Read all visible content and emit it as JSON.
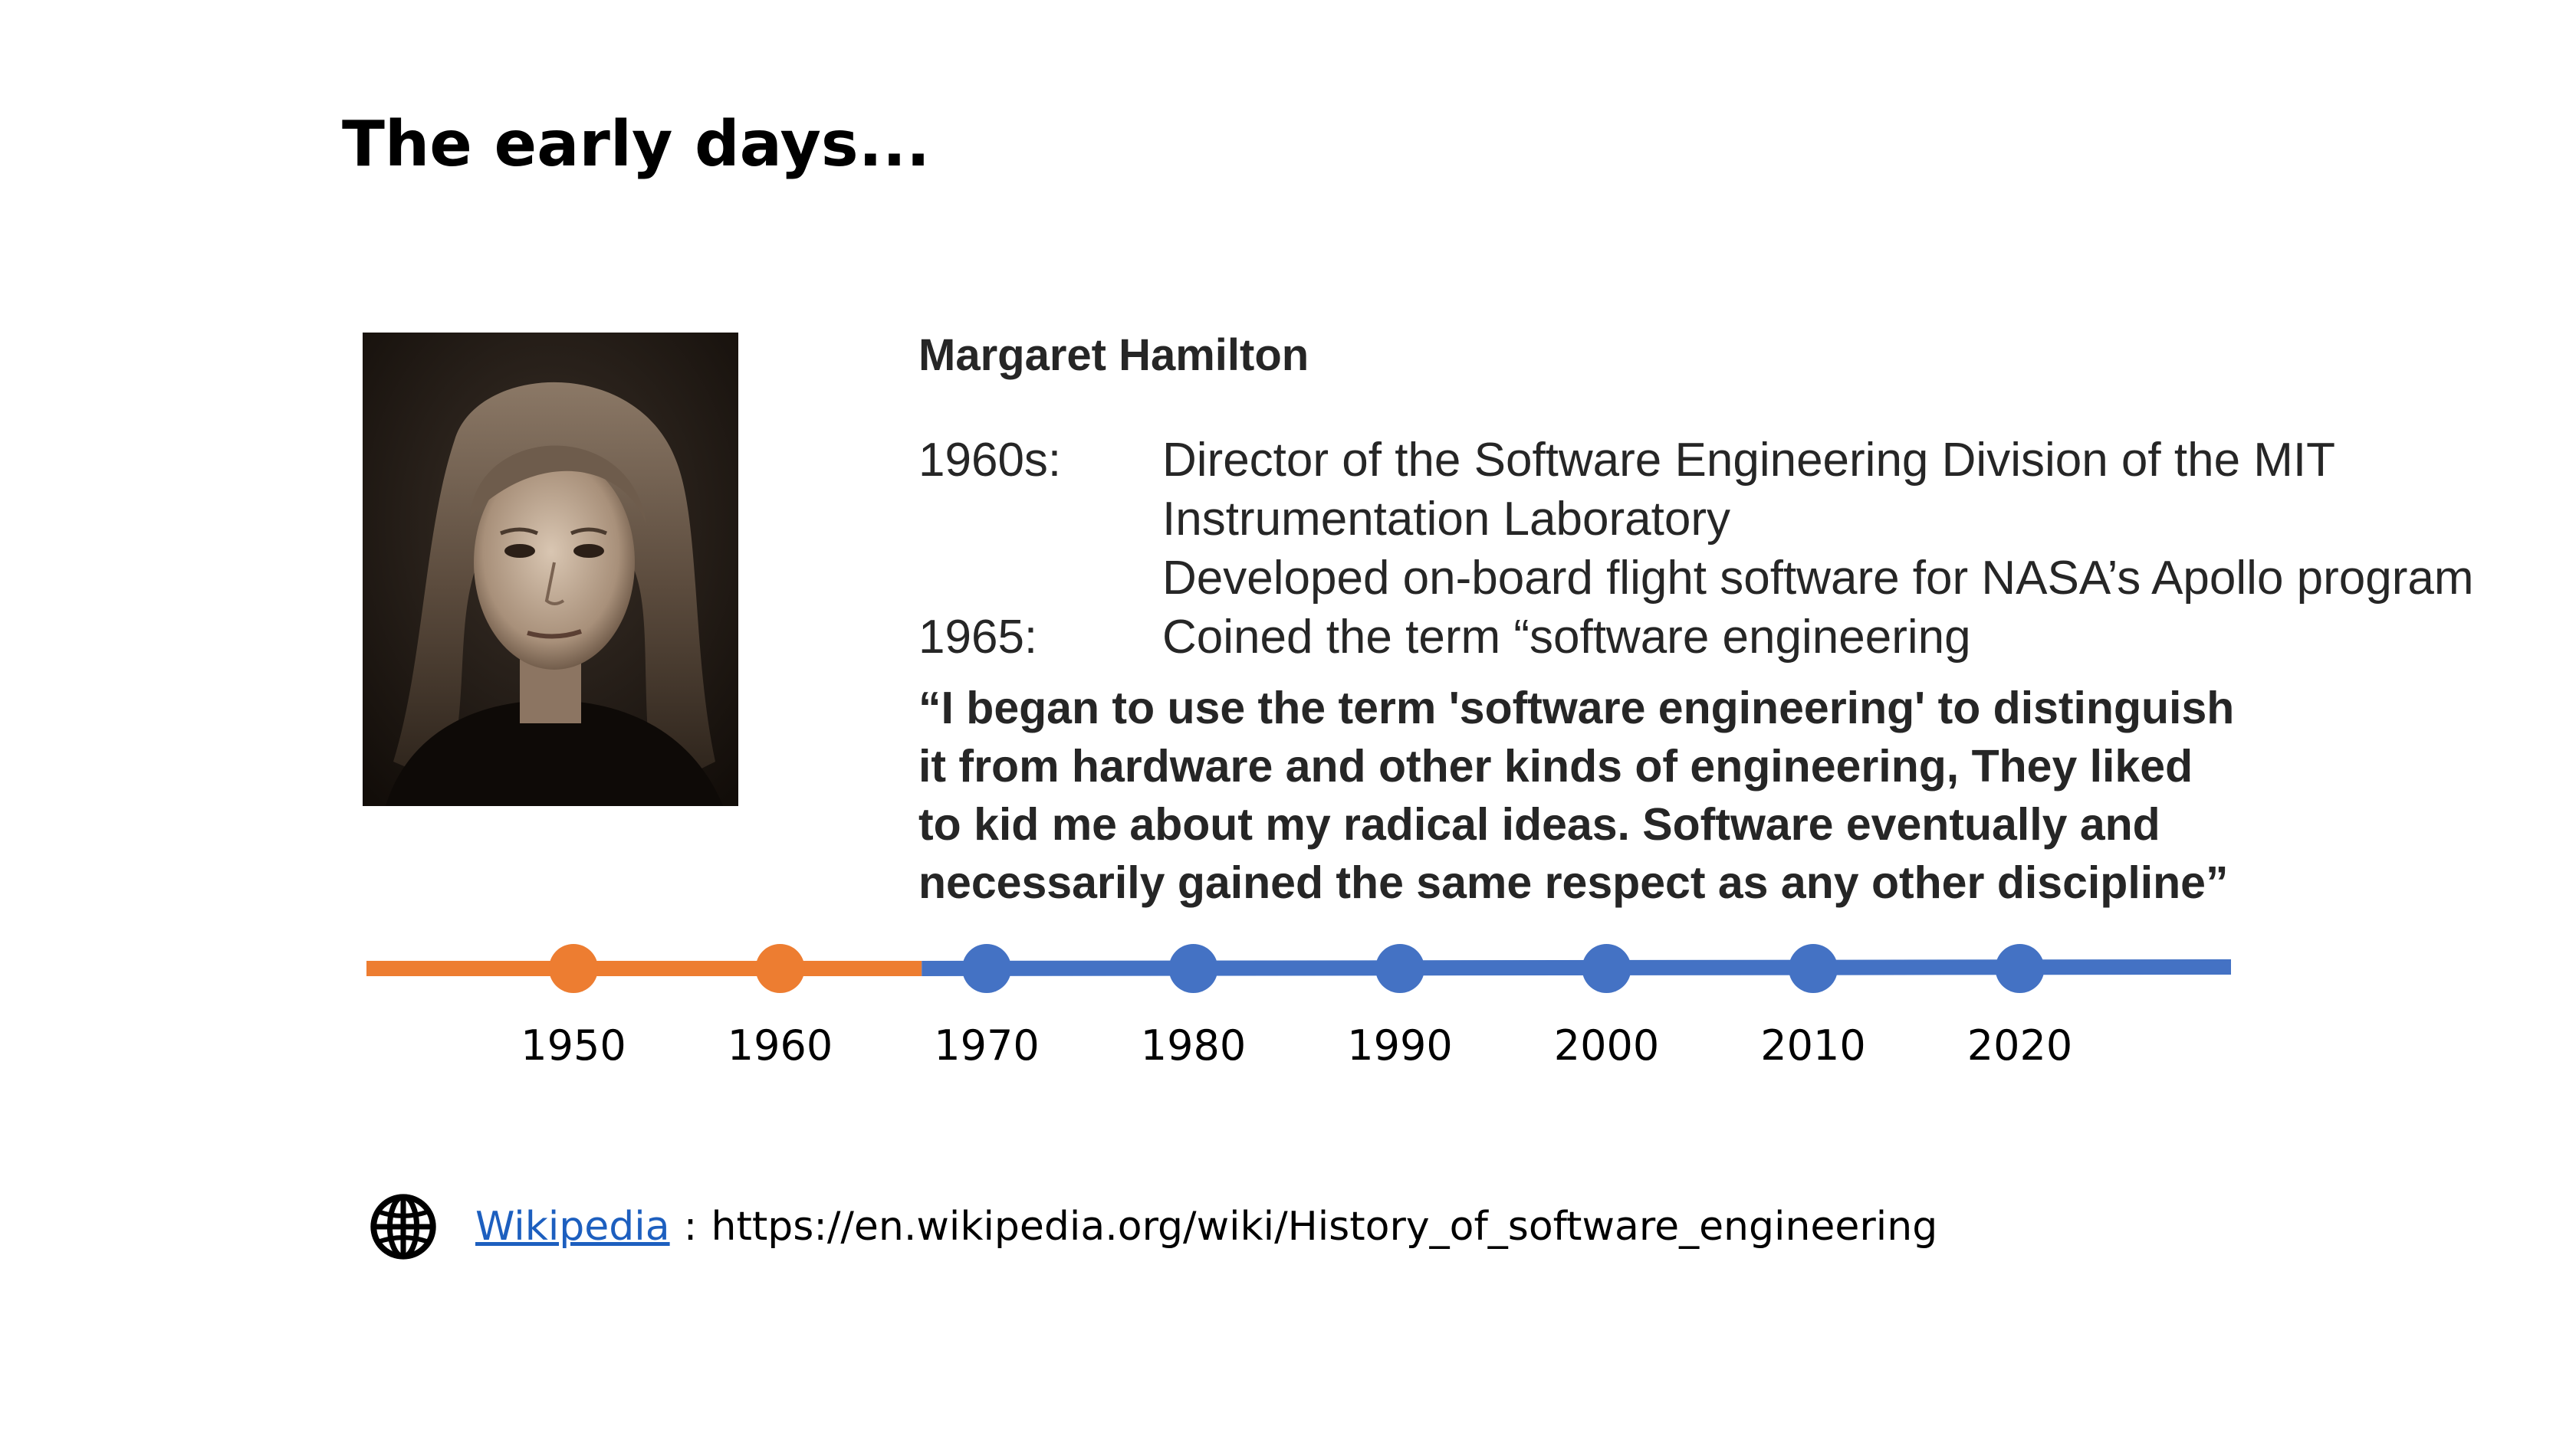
{
  "slide": {
    "title": "The early days..."
  },
  "portrait": {
    "subject": "Margaret Hamilton"
  },
  "bio": {
    "name": "Margaret Hamilton",
    "rows": [
      {
        "year": "1960s:",
        "text": "Director of the Software Engineering Division of the MIT"
      },
      {
        "year": "",
        "text": "Instrumentation Laboratory"
      },
      {
        "year": "",
        "text": "Developed on-board flight software for NASA’s Apollo program"
      },
      {
        "year": "1965:",
        "text": "Coined the term “software engineering"
      }
    ],
    "quote_lines": [
      "“I began to use the term 'software engineering' to distinguish",
      "it from hardware and other kinds of engineering, They liked",
      "to kid me about my radical ideas. Software eventually and",
      "necessarily gained the same respect as any other discipline”"
    ]
  },
  "timeline": {
    "past_color": "#ed7d31",
    "future_color": "#4472c4",
    "ticks": [
      {
        "label": "1950",
        "status": "past"
      },
      {
        "label": "1960",
        "status": "past"
      },
      {
        "label": "1970",
        "status": "future"
      },
      {
        "label": "1980",
        "status": "future"
      },
      {
        "label": "1990",
        "status": "future"
      },
      {
        "label": "2000",
        "status": "future"
      },
      {
        "label": "2010",
        "status": "future"
      },
      {
        "label": "2020",
        "status": "future"
      }
    ]
  },
  "source": {
    "icon": "globe-icon",
    "link_text": "Wikipedia",
    "separator": ":",
    "url": "https://en.wikipedia.org/wiki/History_of_software_engineering"
  }
}
